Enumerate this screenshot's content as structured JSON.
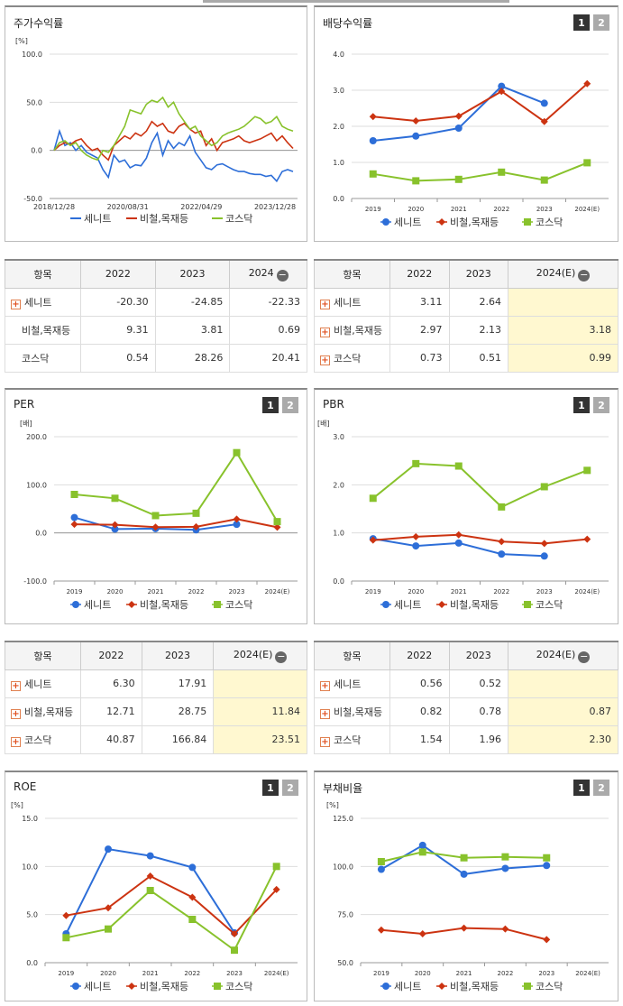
{
  "colors": {
    "senite": "#2d6ed8",
    "steel": "#cc3311",
    "kosdaq": "#88c22c"
  },
  "series_names": [
    "세니트",
    "비철,목재등",
    "코스닥"
  ],
  "btn_labels": [
    "1",
    "2"
  ],
  "panels": {
    "stock": {
      "title": "주가수익률",
      "unit": "[%]"
    },
    "dividend": {
      "title": "배당수익률",
      "unit": ""
    },
    "per": {
      "title": "PER",
      "unit": "[배]"
    },
    "pbr": {
      "title": "PBR",
      "unit": "[배]"
    },
    "roe": {
      "title": "ROE",
      "unit": "[%]"
    },
    "debt": {
      "title": "부채비율",
      "unit": "[%]"
    }
  },
  "tables": {
    "stock": {
      "header": [
        "항목",
        "2022",
        "2023",
        "2024"
      ],
      "rows": [
        {
          "name": "세니트",
          "plus": true,
          "v": [
            "-20.30",
            "-24.85",
            "-22.33"
          ]
        },
        {
          "name": "비철,목재등",
          "plus": false,
          "v": [
            "9.31",
            "3.81",
            "0.69"
          ]
        },
        {
          "name": "코스닥",
          "plus": false,
          "v": [
            "0.54",
            "28.26",
            "20.41"
          ]
        }
      ]
    },
    "dividend": {
      "header": [
        "항목",
        "2022",
        "2023",
        "2024(E)"
      ],
      "rows": [
        {
          "name": "세니트",
          "plus": true,
          "v": [
            "3.11",
            "2.64",
            ""
          ]
        },
        {
          "name": "비철,목재등",
          "plus": true,
          "v": [
            "2.97",
            "2.13",
            "3.18"
          ]
        },
        {
          "name": "코스닥",
          "plus": true,
          "v": [
            "0.73",
            "0.51",
            "0.99"
          ]
        }
      ]
    },
    "per": {
      "header": [
        "항목",
        "2022",
        "2023",
        "2024(E)"
      ],
      "rows": [
        {
          "name": "세니트",
          "plus": true,
          "v": [
            "6.30",
            "17.91",
            ""
          ]
        },
        {
          "name": "비철,목재등",
          "plus": true,
          "v": [
            "12.71",
            "28.75",
            "11.84"
          ]
        },
        {
          "name": "코스닥",
          "plus": true,
          "v": [
            "40.87",
            "166.84",
            "23.51"
          ]
        }
      ]
    },
    "pbr": {
      "header": [
        "항목",
        "2022",
        "2023",
        "2024(E)"
      ],
      "rows": [
        {
          "name": "세니트",
          "plus": true,
          "v": [
            "0.56",
            "0.52",
            ""
          ]
        },
        {
          "name": "비철,목재등",
          "plus": true,
          "v": [
            "0.82",
            "0.78",
            "0.87"
          ]
        },
        {
          "name": "코스닥",
          "plus": true,
          "v": [
            "1.54",
            "1.96",
            "2.30"
          ]
        }
      ]
    }
  },
  "chart_data": [
    {
      "id": "stock",
      "type": "line",
      "title": "주가수익률",
      "ylabel": "[%]",
      "ylim": [
        -50,
        100
      ],
      "yticks": [
        "100.0",
        "50.0",
        "0.0",
        "-50.0"
      ],
      "xticks": [
        "2018/12/28",
        "2020/08/31",
        "2022/04/29",
        "2023/12/28"
      ],
      "series": [
        {
          "name": "세니트",
          "values": [
            0,
            20,
            5,
            8,
            0,
            5,
            -2,
            -5,
            -8,
            -20,
            -28,
            -5,
            -12,
            -10,
            -18,
            -15,
            -16,
            -8,
            8,
            18,
            -5,
            10,
            2,
            8,
            5,
            15,
            -2,
            -10,
            -18,
            -20,
            -15,
            -14,
            -17,
            -20,
            -22,
            -22,
            -24,
            -25,
            -25,
            -27,
            -26,
            -32,
            -22,
            -20,
            -22
          ]
        },
        {
          "name": "비철,목재등",
          "values": [
            0,
            5,
            8,
            6,
            10,
            12,
            5,
            0,
            2,
            -5,
            -10,
            5,
            10,
            15,
            12,
            18,
            15,
            20,
            30,
            25,
            28,
            20,
            18,
            25,
            28,
            22,
            18,
            20,
            5,
            12,
            0,
            8,
            10,
            12,
            15,
            10,
            8,
            10,
            12,
            15,
            18,
            10,
            15,
            8,
            2
          ]
        },
        {
          "name": "코스닥",
          "values": [
            0,
            8,
            10,
            5,
            8,
            0,
            -5,
            -8,
            -10,
            0,
            -2,
            5,
            15,
            25,
            42,
            40,
            38,
            48,
            52,
            50,
            55,
            45,
            50,
            38,
            30,
            22,
            25,
            15,
            10,
            5,
            8,
            15,
            18,
            20,
            22,
            25,
            30,
            35,
            33,
            28,
            30,
            35,
            25,
            22,
            20
          ]
        }
      ]
    },
    {
      "id": "dividend",
      "type": "line",
      "title": "배당수익률",
      "ylim": [
        0,
        4
      ],
      "yticks": [
        "4.0",
        "3.0",
        "2.0",
        "1.0",
        "0.0"
      ],
      "categories": [
        "2019",
        "2020",
        "2021",
        "2022",
        "2023",
        "2024(E)"
      ],
      "series": [
        {
          "name": "세니트",
          "values": [
            1.6,
            1.73,
            1.95,
            3.11,
            2.64,
            null
          ]
        },
        {
          "name": "비철,목재등",
          "values": [
            2.27,
            2.15,
            2.28,
            2.97,
            2.13,
            3.18
          ]
        },
        {
          "name": "코스닥",
          "values": [
            0.68,
            0.49,
            0.53,
            0.73,
            0.51,
            0.99
          ]
        }
      ]
    },
    {
      "id": "per",
      "type": "line",
      "title": "PER",
      "ylabel": "[배]",
      "ylim": [
        -100,
        200
      ],
      "yticks": [
        "200.0",
        "100.0",
        "0.0",
        "-100.0"
      ],
      "categories": [
        "2019",
        "2020",
        "2021",
        "2022",
        "2023",
        "2024(E)"
      ],
      "series": [
        {
          "name": "세니트",
          "values": [
            32,
            8,
            9,
            6.3,
            17.91,
            null
          ]
        },
        {
          "name": "비철,목재등",
          "values": [
            18,
            17,
            12,
            12.71,
            28.75,
            11.84
          ]
        },
        {
          "name": "코스닥",
          "values": [
            80,
            72,
            36,
            40.87,
            166.84,
            23.51
          ]
        }
      ]
    },
    {
      "id": "pbr",
      "type": "line",
      "title": "PBR",
      "ylabel": "[배]",
      "ylim": [
        0,
        3
      ],
      "yticks": [
        "3.0",
        "2.0",
        "1.0",
        "0.0"
      ],
      "categories": [
        "2019",
        "2020",
        "2021",
        "2022",
        "2023",
        "2024(E)"
      ],
      "series": [
        {
          "name": "세니트",
          "values": [
            0.88,
            0.73,
            0.79,
            0.56,
            0.52,
            null
          ]
        },
        {
          "name": "비철,목재등",
          "values": [
            0.85,
            0.92,
            0.96,
            0.82,
            0.78,
            0.87
          ]
        },
        {
          "name": "코스닥",
          "values": [
            1.72,
            2.44,
            2.39,
            1.54,
            1.96,
            2.3
          ]
        }
      ]
    },
    {
      "id": "roe",
      "type": "line",
      "title": "ROE",
      "ylabel": "[%]",
      "ylim": [
        0,
        15
      ],
      "yticks": [
        "15.0",
        "10.0",
        "5.0",
        "0.0"
      ],
      "categories": [
        "2019",
        "2020",
        "2021",
        "2022",
        "2023",
        "2024(E)"
      ],
      "series": [
        {
          "name": "세니트",
          "values": [
            3.0,
            11.8,
            11.1,
            9.9,
            3.1,
            null
          ]
        },
        {
          "name": "비철,목재등",
          "values": [
            4.9,
            5.7,
            9.0,
            6.8,
            3.0,
            7.6
          ]
        },
        {
          "name": "코스닥",
          "values": [
            2.6,
            3.5,
            7.5,
            4.5,
            1.3,
            10.0
          ]
        }
      ]
    },
    {
      "id": "debt",
      "type": "line",
      "title": "부채비율",
      "ylabel": "[%]",
      "ylim": [
        50,
        125
      ],
      "yticks": [
        "125.0",
        "100.0",
        "75.0",
        "50.0"
      ],
      "categories": [
        "2019",
        "2020",
        "2021",
        "2022",
        "2023",
        "2024(E)"
      ],
      "series": [
        {
          "name": "세니트",
          "values": [
            98.5,
            111,
            96,
            99,
            100.5,
            null
          ]
        },
        {
          "name": "비철,목재등",
          "values": [
            67,
            65,
            68,
            67.5,
            62,
            null
          ]
        },
        {
          "name": "코스닥",
          "values": [
            102.5,
            107.5,
            104.5,
            105,
            104.5,
            null
          ]
        }
      ]
    }
  ]
}
